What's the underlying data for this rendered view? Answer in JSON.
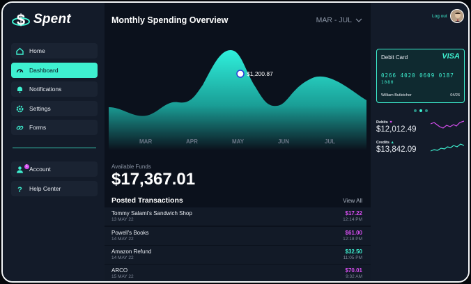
{
  "app": {
    "name": "Spent"
  },
  "sidebar": {
    "items": [
      {
        "label": "Home",
        "icon": "home-icon"
      },
      {
        "label": "Dashboard",
        "icon": "dashboard-icon",
        "active": true
      },
      {
        "label": "Notifications",
        "icon": "bell-icon"
      },
      {
        "label": "Settings",
        "icon": "gear-icon"
      },
      {
        "label": "Forms",
        "icon": "link-icon"
      }
    ],
    "bottom_items": [
      {
        "label": "Account",
        "icon": "user-icon",
        "badge": "1"
      },
      {
        "label": "Help Center",
        "icon": "question-icon"
      }
    ]
  },
  "overview": {
    "title": "Monthly Spending Overview",
    "period": "MAR - JUL",
    "tooltip": "$1,200.87"
  },
  "chart_data": {
    "type": "area",
    "categories": [
      "MAR",
      "APR",
      "MAY",
      "JUN",
      "JUL"
    ],
    "highlight": {
      "value": "$1,200.87"
    }
  },
  "funds": {
    "label": "Available Funds",
    "amount": "$17,367.01"
  },
  "transactions": {
    "title": "Posted Transactions",
    "view_all": "View All",
    "rows": [
      {
        "merchant": "Tommy Salami's Sandwich Shop",
        "date": "13 MAY 22",
        "amount": "$17.22",
        "time": "12:14 PM",
        "kind": "debit"
      },
      {
        "merchant": "Powell's Books",
        "date": "14 MAY 22",
        "amount": "$61.00",
        "time": "12:18 PM",
        "kind": "debit"
      },
      {
        "merchant": "Amazon Refund",
        "date": "14 MAY 22",
        "amount": "$32.50",
        "time": "11:05 PM",
        "kind": "credit"
      },
      {
        "merchant": "ARCO",
        "date": "15 MAY 22",
        "amount": "$70.01",
        "time": "9:32 AM",
        "kind": "debit"
      }
    ]
  },
  "account": {
    "logout": "Log out"
  },
  "card": {
    "type": "Debit Card",
    "brand": "VISA",
    "number": "0266 4020 0609 0187",
    "cvv": "1080",
    "holder": "William Butleicher",
    "expiry": "04/26"
  },
  "stats": {
    "debits": {
      "label": "Debits",
      "value": "$12,012.49"
    },
    "credits": {
      "label": "Credits",
      "value": "$13,842.09"
    }
  },
  "colors": {
    "accent": "#3ef0d0",
    "debit": "#d94ff2",
    "background": "#0f1622"
  }
}
